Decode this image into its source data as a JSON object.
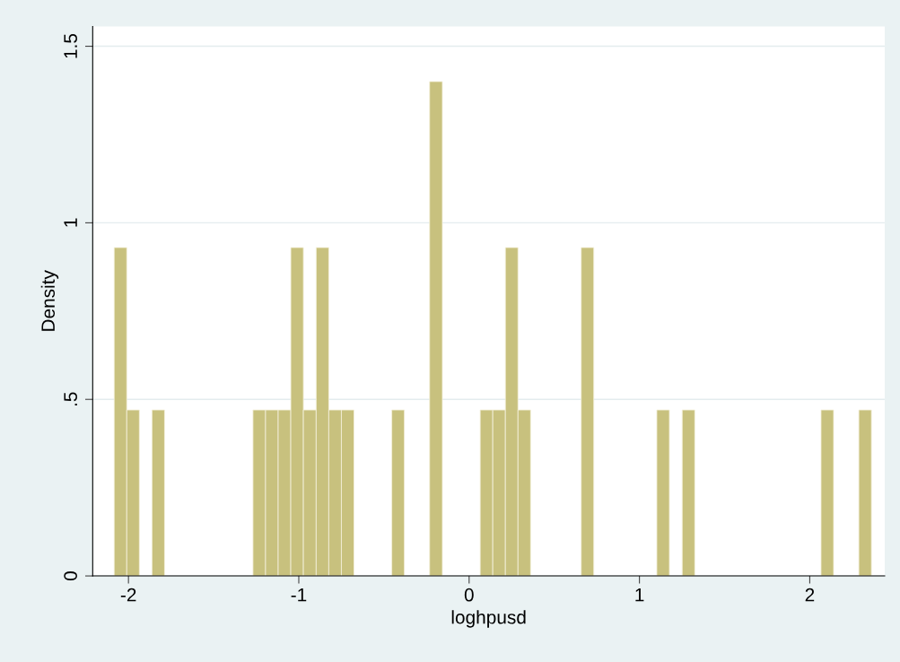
{
  "chart_data": {
    "type": "histogram",
    "xlabel": "loghpusd",
    "ylabel": "Density",
    "bins": [
      -2.084,
      -2.01,
      -1.936,
      -1.862,
      -1.788,
      -1.714,
      -1.639,
      -1.565,
      -1.491,
      -1.417,
      -1.343,
      -1.269,
      -1.195,
      -1.121,
      -1.047,
      -0.973,
      -0.898,
      -0.824,
      -0.75,
      -0.676,
      -0.602,
      -0.528,
      -0.454,
      -0.38,
      -0.306,
      -0.232,
      -0.157,
      -0.083,
      -0.009,
      0.065,
      0.139,
      0.213,
      0.287,
      0.361,
      0.435,
      0.51,
      0.584,
      0.658,
      0.732,
      0.806,
      0.88,
      0.954,
      1.028,
      1.102,
      1.176,
      1.251,
      1.325,
      1.399,
      1.473,
      1.547,
      1.621,
      1.695,
      1.769,
      1.843,
      1.917,
      1.992,
      2.066,
      2.14,
      2.214,
      2.288,
      2.362
    ],
    "values": [
      0.93,
      0.47,
      0,
      0.47,
      0,
      0,
      0,
      0,
      0,
      0,
      0,
      0.47,
      0.47,
      0.47,
      0.93,
      0.47,
      0.93,
      0.47,
      0.47,
      0,
      0,
      0,
      0.47,
      0,
      0,
      1.4,
      0,
      0,
      0,
      0.47,
      0.47,
      0.93,
      0.47,
      0,
      0,
      0,
      0,
      0.93,
      0,
      0,
      0,
      0,
      0,
      0.47,
      0,
      0.47,
      0,
      0,
      0,
      0,
      0,
      0,
      0,
      0,
      0,
      0,
      0.47,
      0,
      0,
      0.47
    ],
    "color": "#c8c17e",
    "xlim": [
      -2.21,
      2.44
    ],
    "xticks": [
      -2,
      -1,
      0,
      1,
      2
    ],
    "ylim": [
      0,
      1.556
    ],
    "yticks": [
      0,
      {
        "value": 0.5,
        "label": ".5"
      },
      1,
      1.5
    ],
    "grid": "y"
  }
}
